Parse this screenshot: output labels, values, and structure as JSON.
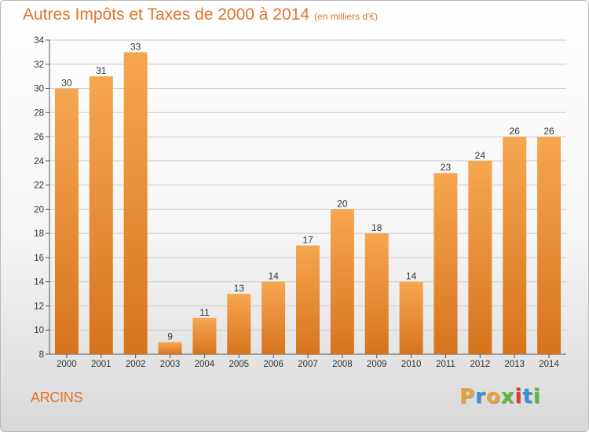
{
  "header": {
    "title": "Autres Impôts et Taxes de 2000 à 2014",
    "unit_note": "(en milliers d'€)"
  },
  "footer": {
    "commune": "ARCINS",
    "logo_letters": [
      "P",
      "r",
      "o",
      "x",
      "i",
      "t",
      "i"
    ],
    "logo_colors": [
      "#e8a23a",
      "#3b8fd6",
      "#e8a23a",
      "#5cb83a",
      "#e23b2e",
      "#3b8fd6",
      "#5cb83a"
    ]
  },
  "colors": {
    "bar_light": "#f7a650",
    "bar_dark": "#d7741e",
    "grid": "#cccccc",
    "text_accent": "#e0742b",
    "axis_text": "#333333"
  },
  "chart_data": {
    "type": "bar",
    "title": "Autres Impôts et Taxes de 2000 à 2014",
    "subtitle": "(en milliers d'€)",
    "xlabel": "",
    "ylabel": "",
    "categories": [
      "2000",
      "2001",
      "2002",
      "2003",
      "2004",
      "2005",
      "2006",
      "2007",
      "2008",
      "2009",
      "2010",
      "2011",
      "2012",
      "2013",
      "2014"
    ],
    "values": [
      30,
      31,
      33,
      9,
      11,
      13,
      14,
      17,
      20,
      18,
      14,
      23,
      24,
      26,
      26
    ],
    "data_labels": [
      "30",
      "31",
      "33",
      "9",
      "11",
      "13",
      "14",
      "17",
      "20",
      "18",
      "14",
      "23",
      "24",
      "26",
      "26"
    ],
    "ylim": [
      8,
      34
    ],
    "yticks": [
      8,
      10,
      12,
      14,
      16,
      18,
      20,
      22,
      24,
      26,
      28,
      30,
      32,
      34
    ],
    "grid": true,
    "legend": "none"
  }
}
